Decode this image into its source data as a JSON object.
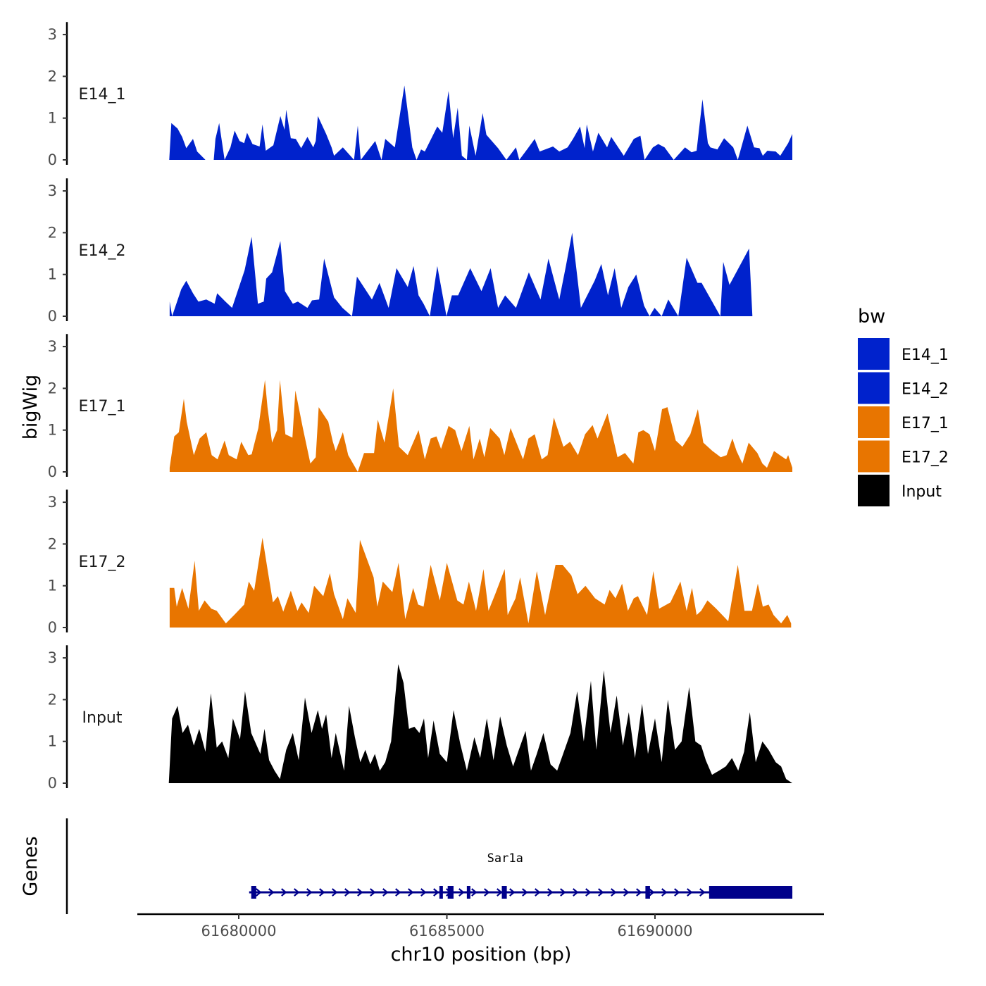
{
  "chart_data": {
    "type": "area",
    "title": "",
    "xlabel": "chr10 position (bp)",
    "ylabel": "bigWig",
    "genes_label": "Genes",
    "chromosome": "chr10",
    "xlim": [
      61677500,
      61694000
    ],
    "x_ticks": [
      61680000,
      61685000,
      61690000
    ],
    "x_tick_labels": [
      "61680000",
      "61685000",
      "61690000"
    ],
    "ylim": [
      0,
      3.3
    ],
    "y_ticks": [
      0,
      1,
      2,
      3
    ],
    "y_tick_labels": [
      "0",
      "1",
      "2",
      "3"
    ],
    "legend": {
      "title": "bw",
      "position": "right",
      "entries": [
        {
          "label": "E14_1",
          "color": "#0022cc"
        },
        {
          "label": "E14_2",
          "color": "#0022cc"
        },
        {
          "label": "E17_1",
          "color": "#e87500"
        },
        {
          "label": "E17_2",
          "color": "#e87500"
        },
        {
          "label": "Input",
          "color": "#000000"
        }
      ]
    },
    "series": [
      {
        "name": "E14_1",
        "color": "#0022cc",
        "x": [
          61678330,
          61678380,
          61678530,
          61678640,
          61678740,
          61678900,
          61679000,
          61679200,
          61679400,
          61679440,
          61679530,
          61679660,
          61679800,
          61679900,
          61680020,
          61680130,
          61680200,
          61680330,
          61680500,
          61680570,
          61680650,
          61680830,
          61681000,
          61681100,
          61681140,
          61681250,
          61681370,
          61681500,
          61681650,
          61681790,
          61681850,
          61681900,
          61682100,
          61682230,
          61682290,
          61682500,
          61682770,
          61682860,
          61682930,
          61683280,
          61683430,
          61683520,
          61683750,
          61683980,
          61684170,
          61684270,
          61684380,
          61684470,
          61684770,
          61684890,
          61685040,
          61685150,
          61685260,
          61685360,
          61685480,
          61685540,
          61685690,
          61685860,
          61685950,
          61686230,
          61686430,
          61686660,
          61686740,
          61686950,
          61687110,
          61687230,
          61687550,
          61687700,
          61687900,
          61688030,
          61688200,
          61688310,
          61688360,
          61688510,
          61688640,
          61688850,
          61688950,
          61689250,
          61689490,
          61689650,
          61689750,
          61689950,
          61690080,
          61690230,
          61690450,
          61690720,
          61690880,
          61691000,
          61691140,
          61691270,
          61691330,
          61691500,
          61691660,
          61691880,
          61691990,
          61692220,
          61692380,
          61692510,
          61692590,
          61692700,
          61692900,
          61693010,
          61693200,
          61693300
        ],
        "values": [
          0,
          0.88,
          0.75,
          0.55,
          0.28,
          0.5,
          0.2,
          0,
          0,
          0.5,
          0.88,
          0,
          0.3,
          0.7,
          0.45,
          0.4,
          0.65,
          0.38,
          0.32,
          0.85,
          0.22,
          0.35,
          1.05,
          0.72,
          1.2,
          0.52,
          0.5,
          0.28,
          0.55,
          0.3,
          0.45,
          1.05,
          0.62,
          0.3,
          0.1,
          0.3,
          0,
          0.82,
          0,
          0.45,
          0,
          0.5,
          0.3,
          1.78,
          0.3,
          0,
          0.25,
          0.2,
          0.8,
          0.65,
          1.65,
          0.52,
          1.25,
          0.1,
          0,
          0.82,
          0.1,
          1.12,
          0.6,
          0.28,
          0,
          0.3,
          0,
          0.28,
          0.5,
          0.2,
          0.32,
          0.2,
          0.3,
          0.5,
          0.8,
          0.28,
          0.85,
          0.2,
          0.65,
          0.3,
          0.55,
          0.1,
          0.5,
          0.58,
          0,
          0.3,
          0.38,
          0.3,
          0,
          0.3,
          0.18,
          0.22,
          1.45,
          0.4,
          0.3,
          0.25,
          0.52,
          0.3,
          0,
          0.82,
          0.3,
          0.28,
          0.1,
          0.22,
          0.2,
          0.1,
          0.4,
          0.62
        ]
      },
      {
        "name": "E14_2",
        "color": "#0022cc",
        "x": [
          61678340,
          61678400,
          61678620,
          61678740,
          61678900,
          61679030,
          61679220,
          61679420,
          61679480,
          61679680,
          61679840,
          61680140,
          61680310,
          61680460,
          61680600,
          61680660,
          61680800,
          61681000,
          61681110,
          61681300,
          61681420,
          61681650,
          61681760,
          61681930,
          61682050,
          61682290,
          61682490,
          61682720,
          61682840,
          61683200,
          61683380,
          61683600,
          61683790,
          61684060,
          61684200,
          61684320,
          61684440,
          61684590,
          61684770,
          61684990,
          61685120,
          61685270,
          61685560,
          61685830,
          61686050,
          61686230,
          61686400,
          61686660,
          61686970,
          61687250,
          61687440,
          61687700,
          61687860,
          61688010,
          61688220,
          61688550,
          61688710,
          61688870,
          61689030,
          61689190,
          61689360,
          61689550,
          61689740,
          61689870,
          61689990,
          61690160,
          61690320,
          61690560,
          61690760,
          61691020,
          61691120,
          61691570,
          61691640,
          61691790,
          61692260,
          61692340,
          61692520,
          61692690,
          61692800,
          61692990,
          61693090,
          61693200,
          61693270
        ],
        "values": [
          0.35,
          0,
          0.65,
          0.85,
          0.55,
          0.35,
          0.4,
          0.3,
          0.55,
          0.35,
          0.2,
          1.1,
          1.9,
          0.3,
          0.35,
          0.9,
          1.05,
          1.8,
          0.6,
          0.3,
          0.35,
          0.2,
          0.38,
          0.4,
          1.38,
          0.45,
          0.2,
          0,
          0.95,
          0.4,
          0.8,
          0.2,
          1.15,
          0.7,
          1.2,
          0.5,
          0.3,
          0,
          1.2,
          0,
          0.5,
          0.5,
          1.15,
          0.6,
          1.15,
          0.2,
          0.5,
          0.2,
          1.05,
          0.4,
          1.38,
          0.4,
          1.2,
          2.0,
          0.2,
          0.85,
          1.25,
          0.5,
          1.15,
          0.2,
          0.7,
          1.0,
          0.25,
          0,
          0.2,
          0,
          0.4,
          0,
          1.4,
          0.8,
          0.8,
          0,
          1.3,
          0.75,
          1.62,
          0,
          0,
          0,
          0,
          0,
          0,
          0,
          0
        ]
      },
      {
        "name": "E17_1",
        "color": "#e87500",
        "x": [
          61678340,
          61678450,
          61678560,
          61678680,
          61678750,
          61678920,
          61679060,
          61679220,
          61679350,
          61679490,
          61679660,
          61679760,
          61679950,
          61680060,
          61680230,
          61680310,
          61680470,
          61680630,
          61680690,
          61680800,
          61680920,
          61680990,
          61681120,
          61681290,
          61681360,
          61681540,
          61681720,
          61681850,
          61681920,
          61682150,
          61682260,
          61682330,
          61682500,
          61682630,
          61682860,
          61683010,
          61683250,
          61683340,
          61683500,
          61683710,
          61683850,
          61684060,
          61684320,
          61684470,
          61684610,
          61684750,
          61684860,
          61685040,
          61685200,
          61685350,
          61685540,
          61685640,
          61685790,
          61685900,
          61686040,
          61686270,
          61686380,
          61686530,
          61686830,
          61686960,
          61687110,
          61687280,
          61687420,
          61687570,
          61687800,
          61687960,
          61688150,
          61688320,
          61688500,
          61688620,
          61688860,
          61689100,
          61689280,
          61689480,
          61689600,
          61689720,
          61689870,
          61690000,
          61690170,
          61690300,
          61690500,
          61690660,
          61690850,
          61691030,
          61691160,
          61691380,
          61691580,
          61691720,
          61691860,
          61691960,
          61692100,
          61692250,
          61692460,
          61692580,
          61692690,
          61692860,
          61693000,
          61693150,
          61693200,
          61693300
        ],
        "values": [
          0.1,
          0.85,
          0.95,
          1.75,
          1.2,
          0.4,
          0.8,
          0.95,
          0.4,
          0.3,
          0.75,
          0.4,
          0.3,
          0.72,
          0.4,
          0.42,
          1.05,
          2.2,
          1.55,
          0.7,
          1.0,
          2.2,
          0.9,
          0.82,
          1.95,
          1.05,
          0.2,
          0.35,
          1.55,
          1.2,
          0.72,
          0.5,
          0.95,
          0.4,
          0,
          0.45,
          0.45,
          1.25,
          0.7,
          2.0,
          0.6,
          0.4,
          1.0,
          0.3,
          0.8,
          0.85,
          0.55,
          1.1,
          1.0,
          0.5,
          1.1,
          0.3,
          0.8,
          0.35,
          1.05,
          0.8,
          0.4,
          1.05,
          0.3,
          0.8,
          0.9,
          0.3,
          0.4,
          1.3,
          0.6,
          0.72,
          0.4,
          0.9,
          1.12,
          0.8,
          1.4,
          0.35,
          0.45,
          0.2,
          0.95,
          1.0,
          0.9,
          0.5,
          1.5,
          1.55,
          0.75,
          0.6,
          0.9,
          1.5,
          0.7,
          0.5,
          0.35,
          0.4,
          0.8,
          0.5,
          0.2,
          0.7,
          0.45,
          0.2,
          0.1,
          0.5,
          0.4,
          0.3,
          0.4,
          0.1
        ]
      },
      {
        "name": "E17_2",
        "color": "#e87500",
        "x": [
          61678340,
          61678450,
          61678510,
          61678640,
          61678790,
          61678940,
          61679040,
          61679180,
          61679340,
          61679470,
          61679690,
          61679890,
          61680130,
          61680240,
          61680370,
          61680570,
          61680690,
          61680820,
          61680940,
          61681070,
          61681250,
          61681410,
          61681510,
          61681680,
          61681810,
          61682030,
          61682190,
          61682290,
          61682500,
          61682610,
          61682810,
          61682910,
          61683240,
          61683330,
          61683460,
          61683690,
          61683840,
          61684000,
          61684190,
          61684310,
          61684440,
          61684610,
          61684830,
          61685000,
          61685250,
          61685400,
          61685530,
          61685700,
          61685880,
          61686000,
          61686160,
          61686390,
          61686460,
          61686650,
          61686760,
          61686960,
          61687160,
          61687360,
          61687610,
          61687780,
          61687990,
          61688140,
          61688330,
          61688560,
          61688790,
          61688910,
          61689050,
          61689210,
          61689350,
          61689490,
          61689590,
          61689810,
          61689960,
          61690100,
          61690370,
          61690610,
          61690760,
          61690890,
          61691000,
          61691110,
          61691260,
          61691470,
          61691760,
          61691990,
          61692150,
          61692330,
          61692470,
          61692590,
          61692730,
          61692850,
          61693030,
          61693180,
          61693270
        ],
        "values": [
          0.95,
          0.95,
          0.5,
          0.95,
          0.45,
          1.6,
          0.4,
          0.65,
          0.45,
          0.4,
          0.1,
          0.3,
          0.55,
          1.1,
          0.88,
          2.15,
          1.4,
          0.6,
          0.75,
          0.38,
          0.88,
          0.4,
          0.6,
          0.35,
          1.0,
          0.75,
          1.3,
          0.8,
          0.2,
          0.7,
          0.35,
          2.1,
          1.2,
          0.5,
          1.1,
          0.85,
          1.55,
          0.2,
          0.95,
          0.55,
          0.5,
          1.5,
          0.65,
          1.55,
          0.65,
          0.55,
          1.1,
          0.4,
          1.4,
          0.4,
          0.8,
          1.4,
          0.3,
          0.7,
          1.2,
          0.1,
          1.35,
          0.3,
          1.5,
          1.5,
          1.25,
          0.8,
          1.0,
          0.7,
          0.55,
          0.9,
          0.7,
          1.05,
          0.4,
          0.7,
          0.75,
          0.3,
          1.35,
          0.45,
          0.6,
          1.1,
          0.4,
          0.95,
          0.3,
          0.4,
          0.65,
          0.45,
          0.15,
          1.5,
          0.4,
          0.4,
          1.05,
          0.5,
          0.55,
          0.3,
          0.1,
          0.3,
          0.1
        ]
      },
      {
        "name": "Input",
        "color": "#000000",
        "x": [
          61678320,
          61678400,
          61678530,
          61678650,
          61678780,
          61678920,
          61679050,
          61679200,
          61679330,
          61679470,
          61679600,
          61679750,
          61679860,
          61680030,
          61680150,
          61680300,
          61680520,
          61680620,
          61680730,
          61680860,
          61680990,
          61681140,
          61681300,
          61681440,
          61681590,
          61681750,
          61681900,
          61682000,
          61682100,
          61682230,
          61682330,
          61682530,
          61682650,
          61682790,
          61682920,
          61683040,
          61683160,
          61683270,
          61683390,
          61683520,
          61683660,
          61683830,
          61683960,
          61684090,
          61684220,
          61684340,
          61684450,
          61684550,
          61684680,
          61684830,
          61685000,
          61685160,
          61685320,
          61685480,
          61685660,
          61685800,
          61685960,
          61686120,
          61686280,
          61686440,
          61686590,
          61686730,
          61686890,
          61687020,
          61687160,
          61687320,
          61687490,
          61687650,
          61687810,
          61687970,
          61688130,
          61688290,
          61688460,
          61688590,
          61688770,
          61688930,
          61689080,
          61689230,
          61689370,
          61689520,
          61689690,
          61689830,
          61690000,
          61690160,
          61690310,
          61690480,
          61690640,
          61690820,
          61690970,
          61691110,
          61691220,
          61691370,
          61691540,
          61691700,
          61691850,
          61692000,
          61692140,
          61692280,
          61692420,
          61692580,
          61692730,
          61692900,
          61693030,
          61693150,
          61693300
        ],
        "values": [
          0,
          1.55,
          1.85,
          1.2,
          1.4,
          0.9,
          1.3,
          0.75,
          2.15,
          0.85,
          1.0,
          0.6,
          1.55,
          1.05,
          2.2,
          1.2,
          0.7,
          1.3,
          0.55,
          0.3,
          0.1,
          0.8,
          1.2,
          0.55,
          2.05,
          1.2,
          1.75,
          1.3,
          1.65,
          0.6,
          1.2,
          0.3,
          1.85,
          1.1,
          0.5,
          0.8,
          0.45,
          0.7,
          0.3,
          0.5,
          1.0,
          2.85,
          2.4,
          1.3,
          1.35,
          1.2,
          1.55,
          0.6,
          1.5,
          0.7,
          0.5,
          1.75,
          0.95,
          0.3,
          1.1,
          0.6,
          1.55,
          0.55,
          1.6,
          0.9,
          0.4,
          0.8,
          1.25,
          0.3,
          0.7,
          1.2,
          0.45,
          0.3,
          0.75,
          1.2,
          2.2,
          1.0,
          2.45,
          0.8,
          2.7,
          1.2,
          2.1,
          0.9,
          1.7,
          0.6,
          1.9,
          0.7,
          1.55,
          0.5,
          2.0,
          0.8,
          1.0,
          2.3,
          1.0,
          0.9,
          0.55,
          0.2,
          0.3,
          0.4,
          0.6,
          0.3,
          0.75,
          1.7,
          0.5,
          1.0,
          0.8,
          0.5,
          0.4,
          0.1,
          0
        ]
      }
    ],
    "genes": [
      {
        "name": "Sar1a",
        "color": "#00008b",
        "strand": "+",
        "start": 61680250,
        "end": 61693300,
        "exons": [
          {
            "start": 61680300,
            "end": 61680420
          },
          {
            "start": 61684820,
            "end": 61684880
          },
          {
            "start": 61685020,
            "end": 61685160
          },
          {
            "start": 61685480,
            "end": 61685530
          },
          {
            "start": 61686320,
            "end": 61686440
          },
          {
            "start": 61689770,
            "end": 61689880
          },
          {
            "start": 61691300,
            "end": 61693300
          }
        ]
      }
    ]
  }
}
